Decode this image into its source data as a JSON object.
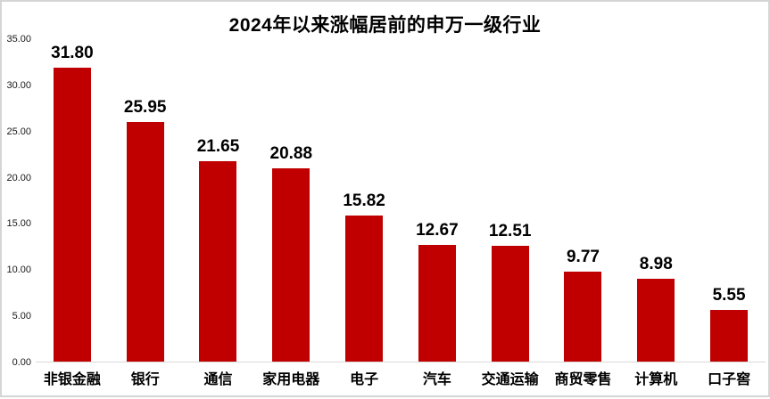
{
  "chart_data": {
    "type": "bar",
    "title": "2024年以来涨幅居前的申万一级行业",
    "categories": [
      "非银金融",
      "银行",
      "通信",
      "家用电器",
      "电子",
      "汽车",
      "交通运输",
      "商贸零售",
      "计算机",
      "口子窖"
    ],
    "values": [
      31.8,
      25.95,
      21.65,
      20.88,
      15.82,
      12.67,
      12.51,
      9.77,
      8.98,
      5.55
    ],
    "value_labels": [
      "31.80",
      "25.95",
      "21.65",
      "20.88",
      "15.82",
      "12.67",
      "12.51",
      "9.77",
      "8.98",
      "5.55"
    ],
    "yticks": [
      "35.00",
      "30.00",
      "25.00",
      "20.00",
      "15.00",
      "10.00",
      "5.00",
      "0.00"
    ],
    "xlabel": "",
    "ylabel": "",
    "ylim": [
      0,
      35
    ],
    "grid": false,
    "legend": false,
    "bar_color": "#c00000",
    "baseline_color": "#d9d9d9",
    "text_color": "#000000"
  }
}
